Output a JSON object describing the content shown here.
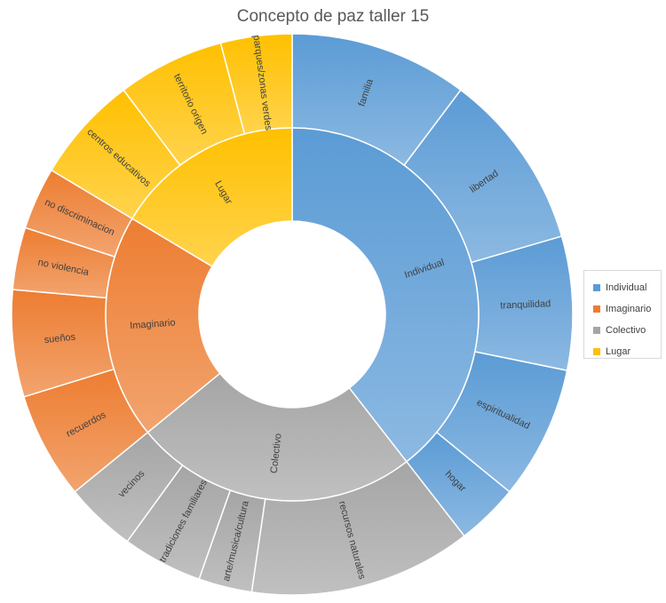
{
  "chart_data": {
    "type": "sunburst",
    "title": "Concepto de paz taller 15",
    "legend_position": "right",
    "categories": [
      {
        "name": "Individual",
        "color": "#5b9bd5",
        "children": [
          {
            "name": "familia",
            "value": 2
          },
          {
            "name": "libertad",
            "value": 2
          },
          {
            "name": "tranquilidad",
            "value": 1.5
          },
          {
            "name": "espiritualidad",
            "value": 1.5
          },
          {
            "name": "hogar",
            "value": 0.7
          }
        ]
      },
      {
        "name": "Colectivo",
        "color": "#a5a5a5",
        "children": [
          {
            "name": "recursos naturales",
            "value": 2.5
          },
          {
            "name": "arte/musica/cultura",
            "value": 0.6
          },
          {
            "name": "tradiciones familiares",
            "value": 0.9
          },
          {
            "name": "vecinos",
            "value": 0.8
          }
        ]
      },
      {
        "name": "Imaginario",
        "color": "#ed7d31",
        "children": [
          {
            "name": "recuerdos",
            "value": 1.2
          },
          {
            "name": "sueños",
            "value": 1.2
          },
          {
            "name": "no violencia",
            "value": 0.7
          },
          {
            "name": "no discriminacion",
            "value": 0.7
          }
        ]
      },
      {
        "name": "Lugar",
        "color": "#ffc000",
        "children": [
          {
            "name": "centros educativos",
            "value": 1.2
          },
          {
            "name": "territorio origen",
            "value": 1.2
          },
          {
            "name": "parques/zonas verdes",
            "value": 0.8
          }
        ]
      }
    ],
    "legend": [
      "Individual",
      "Imaginario",
      "Colectivo",
      "Lugar"
    ]
  }
}
